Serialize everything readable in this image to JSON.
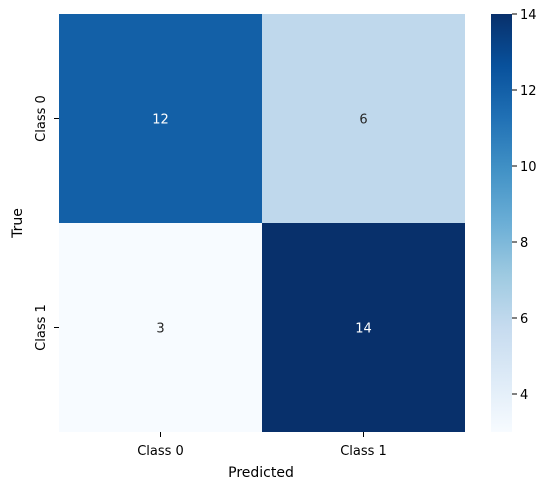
{
  "chart_data": {
    "type": "heatmap",
    "title": "",
    "xlabel": "Predicted",
    "ylabel": "True",
    "x_categories": [
      "Class 0",
      "Class 1"
    ],
    "y_categories": [
      "Class 0",
      "Class 1"
    ],
    "values": [
      [
        12,
        6
      ],
      [
        3,
        14
      ]
    ],
    "colormap": "Blues",
    "vmin": 3,
    "vmax": 14,
    "colorbar": {
      "ticks": [
        4,
        6,
        8,
        10,
        12,
        14
      ]
    },
    "annotations": true
  },
  "colors": {
    "low": "#f7fbff",
    "high": "#08306b"
  }
}
